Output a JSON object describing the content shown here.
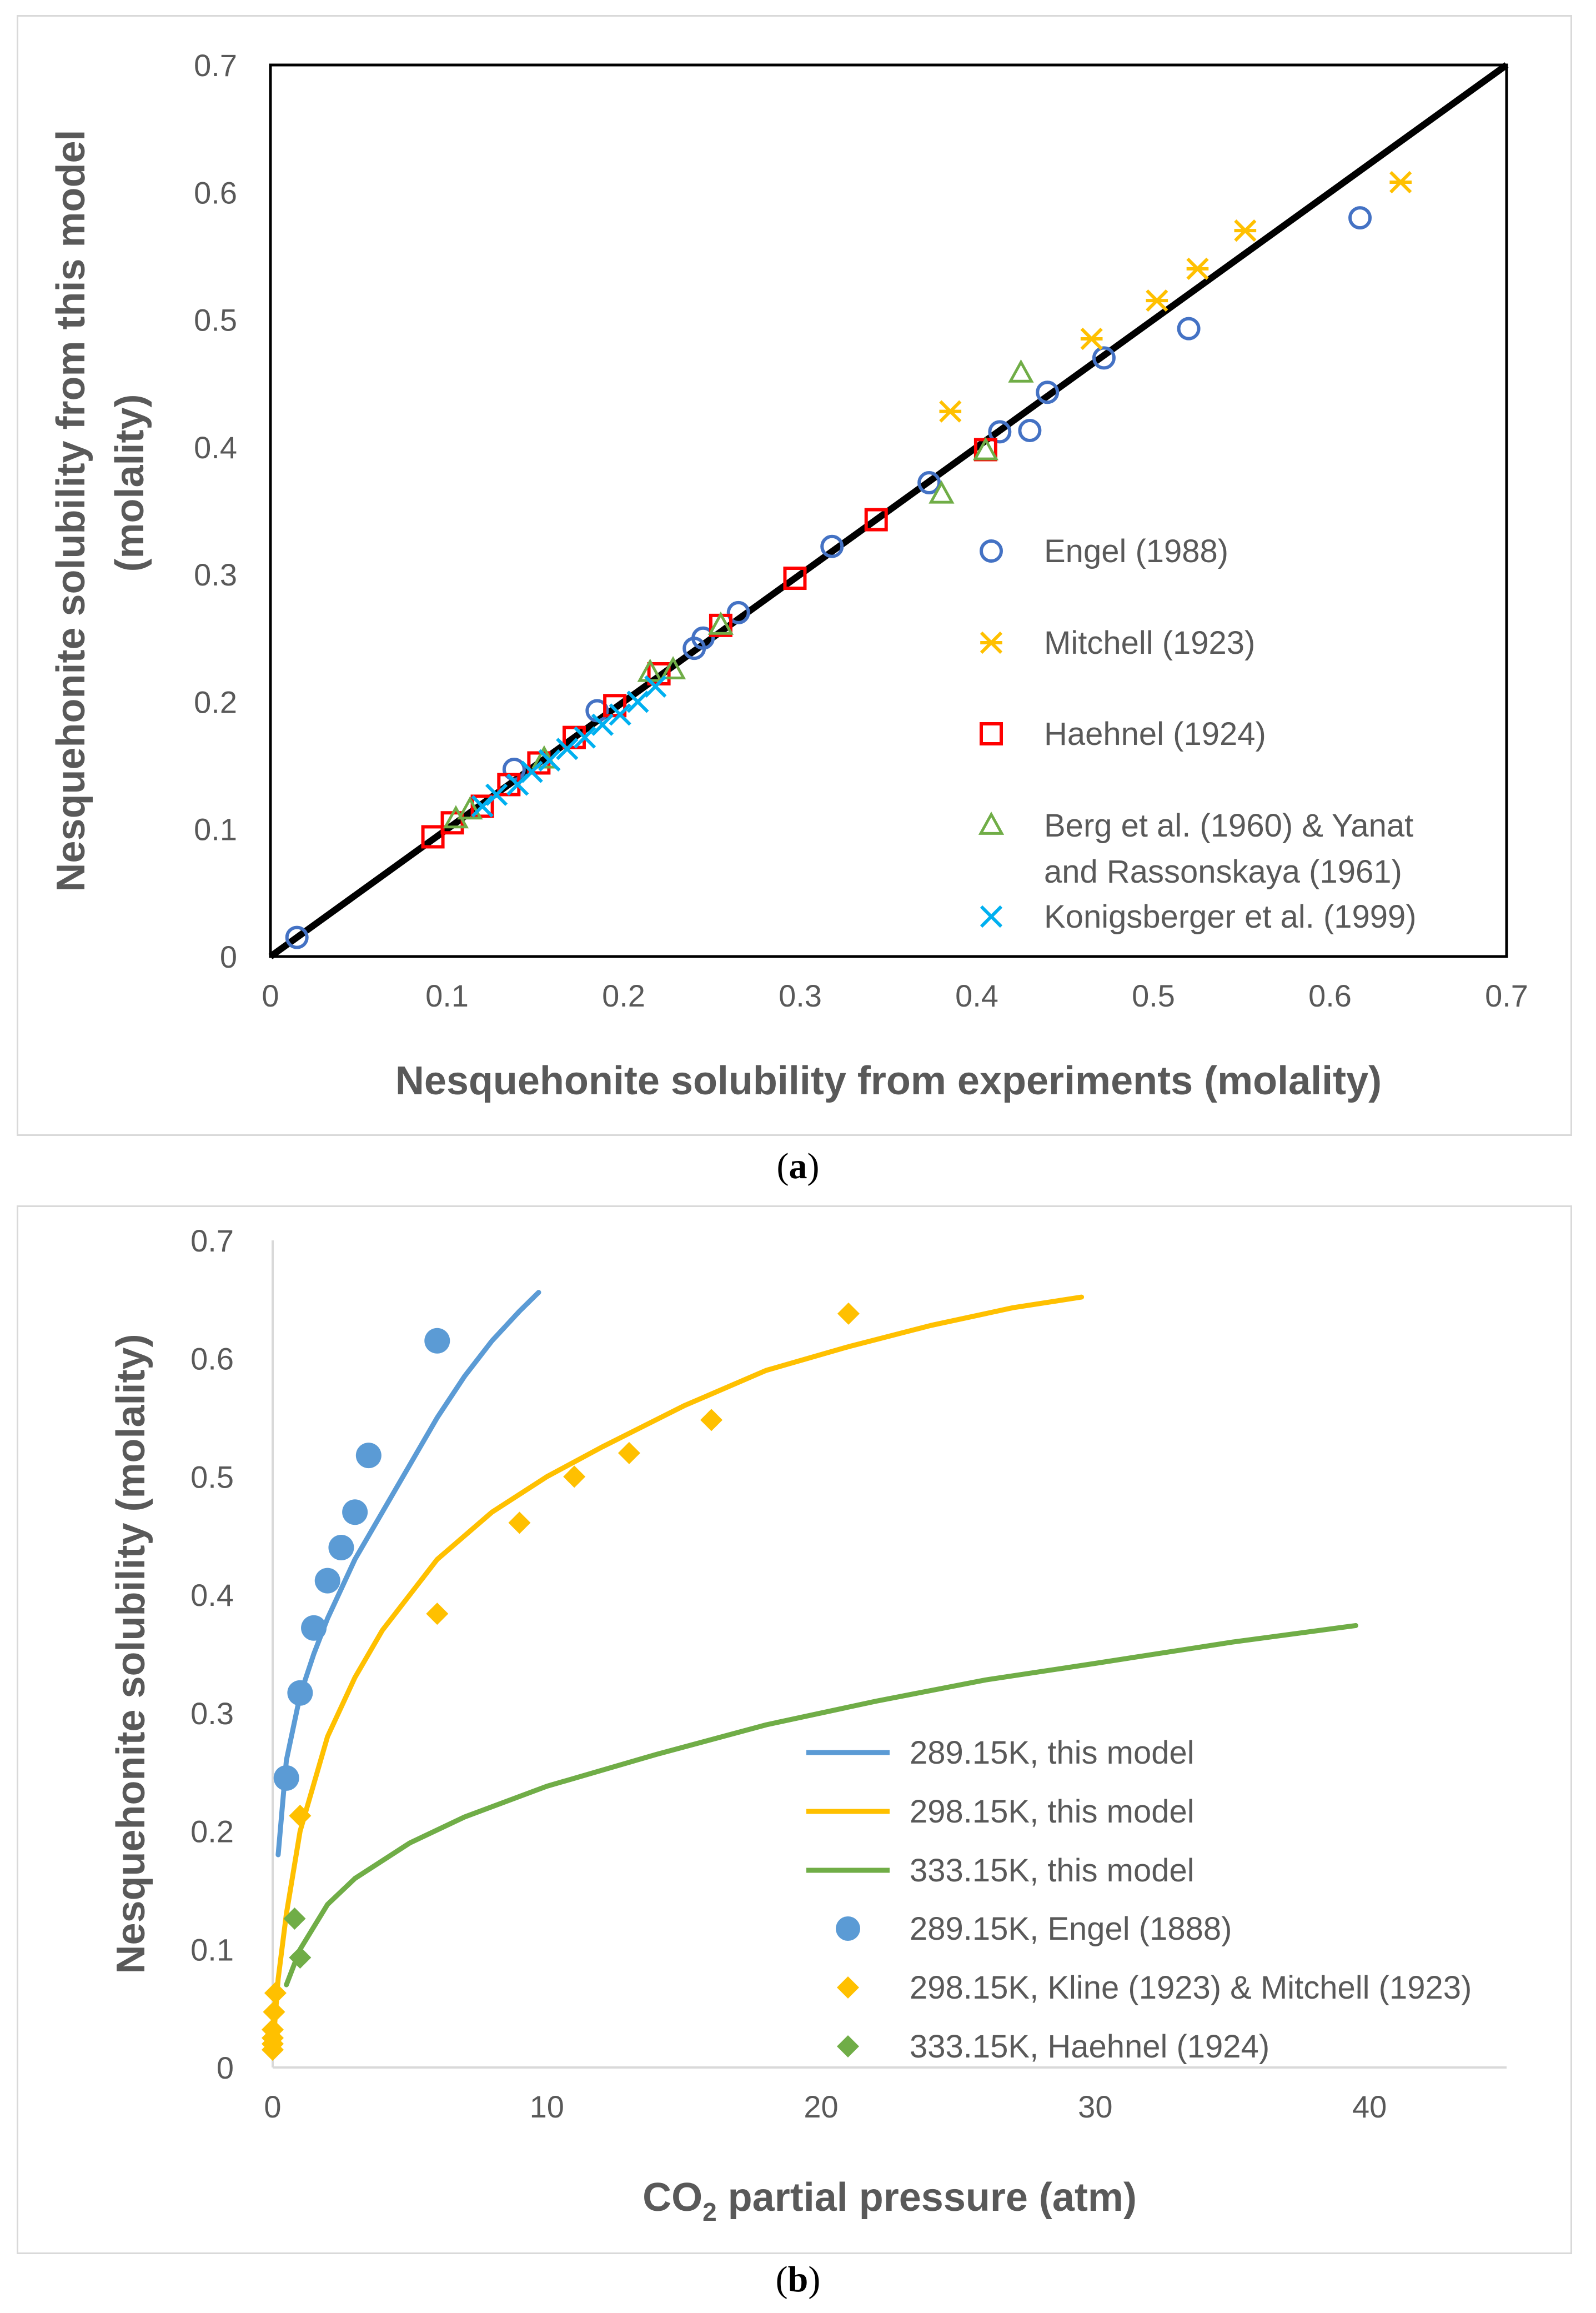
{
  "captions": {
    "a_open": "(",
    "a_letter": "a",
    "a_close": ")",
    "b_open": "(",
    "b_letter": "b",
    "b_close": ")"
  },
  "chart_data": [
    {
      "id": "a",
      "type": "scatter",
      "title": "",
      "xlabel": "Nesquehonite solubility from experiments (molality)",
      "ylabel_line1": "Nesquehonite solubility from this model",
      "ylabel_line2": "(molality)",
      "xlim": [
        0,
        0.7
      ],
      "ylim": [
        0,
        0.7
      ],
      "xticks": [
        "0",
        "0.1",
        "0.2",
        "0.3",
        "0.4",
        "0.5",
        "0.6",
        "0.7"
      ],
      "yticks": [
        "0",
        "0.1",
        "0.2",
        "0.3",
        "0.4",
        "0.5",
        "0.6",
        "0.7"
      ],
      "reference_line": {
        "x": [
          0,
          0.7
        ],
        "y": [
          0,
          0.7
        ],
        "color": "#000000"
      },
      "legend_position": "right",
      "series": [
        {
          "name": "Engel (1988)",
          "marker": "circle",
          "color": "#4472c4",
          "points": [
            [
              0.015,
              0.015
            ],
            [
              0.138,
              0.147
            ],
            [
              0.185,
              0.193
            ],
            [
              0.24,
              0.242
            ],
            [
              0.245,
              0.25
            ],
            [
              0.265,
              0.27
            ],
            [
              0.318,
              0.322
            ],
            [
              0.373,
              0.372
            ],
            [
              0.413,
              0.412
            ],
            [
              0.43,
              0.413
            ],
            [
              0.44,
              0.443
            ],
            [
              0.472,
              0.47
            ],
            [
              0.52,
              0.493
            ],
            [
              0.617,
              0.58
            ]
          ]
        },
        {
          "name": "Mitchell (1923)",
          "marker": "asterisk",
          "color": "#ffc000",
          "points": [
            [
              0.385,
              0.428
            ],
            [
              0.465,
              0.485
            ],
            [
              0.502,
              0.515
            ],
            [
              0.525,
              0.54
            ],
            [
              0.552,
              0.57
            ],
            [
              0.64,
              0.608
            ]
          ]
        },
        {
          "name": "Haehnel (1924)",
          "marker": "square",
          "color": "#ff0000",
          "points": [
            [
              0.092,
              0.094
            ],
            [
              0.103,
              0.105
            ],
            [
              0.12,
              0.118
            ],
            [
              0.135,
              0.135
            ],
            [
              0.152,
              0.152
            ],
            [
              0.172,
              0.172
            ],
            [
              0.195,
              0.197
            ],
            [
              0.22,
              0.222
            ],
            [
              0.255,
              0.26
            ],
            [
              0.297,
              0.297
            ],
            [
              0.343,
              0.343
            ],
            [
              0.405,
              0.398
            ]
          ]
        },
        {
          "name": "Berg et al. (1960) & Yanat and Rassonskaya (1961)",
          "legend_line1": "Berg et al. (1960) & Yanat",
          "legend_line2": "and Rassonskaya (1961)",
          "marker": "triangle",
          "color": "#70ad47",
          "points": [
            [
              0.105,
              0.108
            ],
            [
              0.113,
              0.115
            ],
            [
              0.155,
              0.155
            ],
            [
              0.215,
              0.223
            ],
            [
              0.228,
              0.225
            ],
            [
              0.255,
              0.26
            ],
            [
              0.38,
              0.363
            ],
            [
              0.405,
              0.397
            ],
            [
              0.425,
              0.458
            ]
          ]
        },
        {
          "name": "Konigsberger et al. (1999)",
          "marker": "x",
          "color": "#00b0f0",
          "points": [
            [
              0.12,
              0.118
            ],
            [
              0.128,
              0.127
            ],
            [
              0.14,
              0.135
            ],
            [
              0.148,
              0.145
            ],
            [
              0.158,
              0.154
            ],
            [
              0.168,
              0.163
            ],
            [
              0.178,
              0.172
            ],
            [
              0.188,
              0.182
            ],
            [
              0.198,
              0.19
            ],
            [
              0.208,
              0.2
            ],
            [
              0.218,
              0.212
            ]
          ]
        }
      ]
    },
    {
      "id": "b",
      "type": "line",
      "title": "",
      "xlabel_main": "CO",
      "xlabel_sub": "2",
      "xlabel_rest": " partial pressure (atm)",
      "ylabel": "Nesquehonite solubility (molality)",
      "xlim": [
        0,
        45
      ],
      "ylim": [
        0,
        0.7
      ],
      "xticks": [
        "0",
        "10",
        "20",
        "30",
        "40"
      ],
      "yticks": [
        "0",
        "0.1",
        "0.2",
        "0.3",
        "0.4",
        "0.5",
        "0.6",
        "0.7"
      ],
      "legend_position": "bottom-right",
      "series": [
        {
          "name": "289.15K, this model",
          "kind": "line",
          "color": "#5b9bd5",
          "x": [
            0.2,
            0.5,
            1,
            1.5,
            2,
            3,
            4,
            5,
            6,
            7,
            8,
            9,
            9.7
          ],
          "y": [
            0.18,
            0.26,
            0.315,
            0.35,
            0.38,
            0.43,
            0.47,
            0.51,
            0.55,
            0.585,
            0.615,
            0.64,
            0.656
          ]
        },
        {
          "name": "298.15K, this model",
          "kind": "line",
          "color": "#ffc000",
          "x": [
            0.05,
            0.2,
            0.5,
            1,
            2,
            3,
            4,
            6,
            8,
            10,
            12,
            15,
            18,
            21,
            24,
            27,
            29.5
          ],
          "y": [
            0.03,
            0.075,
            0.13,
            0.2,
            0.28,
            0.33,
            0.37,
            0.43,
            0.47,
            0.5,
            0.525,
            0.56,
            0.59,
            0.61,
            0.628,
            0.643,
            0.652
          ]
        },
        {
          "name": "333.15K, this model",
          "kind": "line",
          "color": "#70ad47",
          "x": [
            0.5,
            1,
            2,
            3,
            5,
            7,
            10,
            14,
            18,
            22,
            26,
            30,
            35,
            39.5
          ],
          "y": [
            0.07,
            0.1,
            0.138,
            0.16,
            0.19,
            0.212,
            0.238,
            0.265,
            0.29,
            0.31,
            0.328,
            0.342,
            0.36,
            0.374
          ]
        },
        {
          "name": "289.15K, Engel (1888)",
          "kind": "points",
          "marker": "circle",
          "color": "#5b9bd5",
          "x": [
            0.5,
            1,
            1.5,
            2,
            2.5,
            3,
            3.5,
            6
          ],
          "y": [
            0.245,
            0.317,
            0.372,
            0.412,
            0.44,
            0.47,
            0.518,
            0.615
          ]
        },
        {
          "name": "298.15K, Kline (1923) & Mitchell (1923)",
          "kind": "points",
          "marker": "diamond",
          "color": "#ffc000",
          "x": [
            0,
            0,
            0,
            0,
            0.05,
            0.1,
            1,
            6,
            9,
            11,
            13,
            16,
            21
          ],
          "y": [
            0.015,
            0.02,
            0.025,
            0.032,
            0.047,
            0.063,
            0.213,
            0.384,
            0.461,
            0.5,
            0.52,
            0.548,
            0.638
          ]
        },
        {
          "name": "333.15K, Haehnel (1924)",
          "kind": "points",
          "marker": "diamond",
          "color": "#70ad47",
          "x": [
            0.8,
            1
          ],
          "y": [
            0.126,
            0.093
          ]
        }
      ]
    }
  ]
}
